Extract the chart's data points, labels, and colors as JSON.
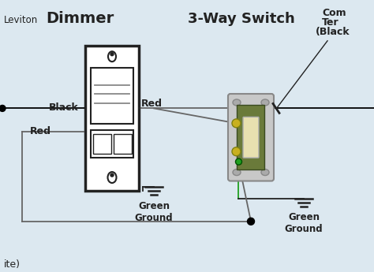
{
  "title_leviton": "Leviton",
  "title_dimmer": "Dimmer",
  "title_3way": "3-Way Switch",
  "label_com1": "Com",
  "label_com2": "Ter",
  "label_com3": "(Black",
  "label_black": "Black",
  "label_red_top": "Red",
  "label_red_bottom": "Red",
  "label_green_ground_left": "Green\nGround",
  "label_green_ground_right": "Green\nGround",
  "label_ite": "ite)",
  "bg_color": "#dce8f0",
  "line_color": "#222222",
  "fig_width": 4.74,
  "fig_height": 3.45,
  "dpi": 100
}
